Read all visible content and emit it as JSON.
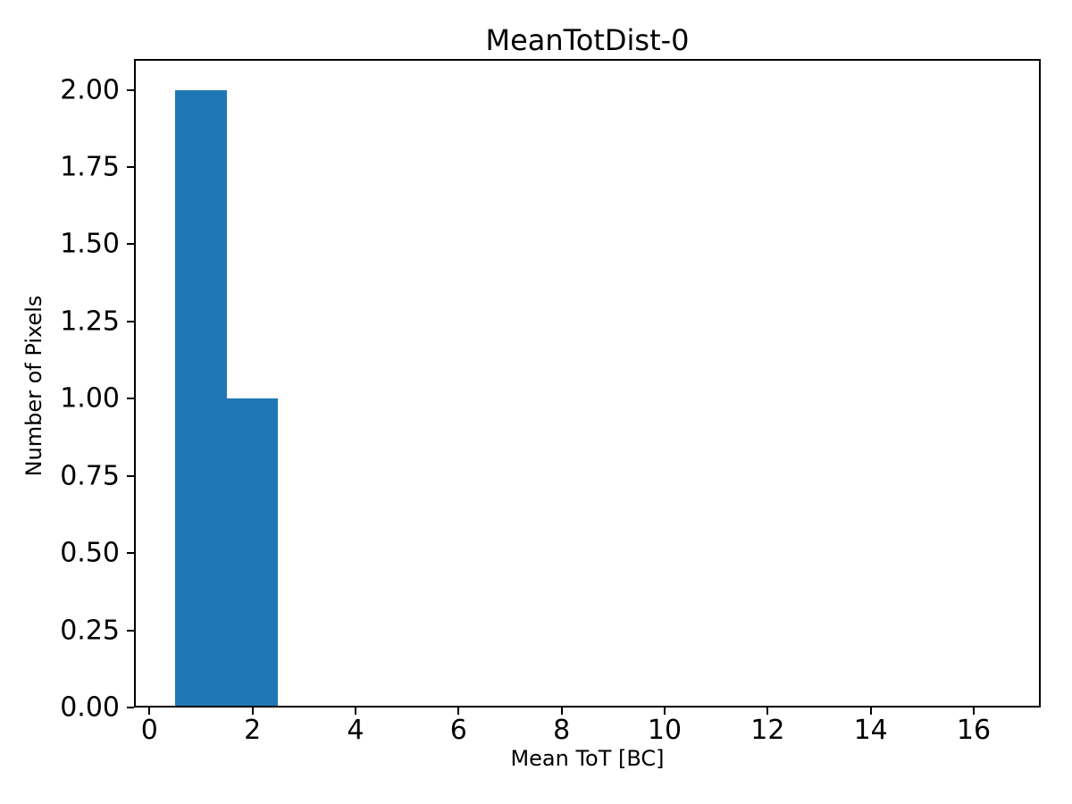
{
  "chart_data": {
    "type": "bar",
    "subtype": "histogram",
    "title": "MeanTotDist-0",
    "xlabel": "Mean ToT [BC]",
    "ylabel": "Number of Pixels",
    "bin_edges": [
      0.5,
      1.5,
      2.5
    ],
    "counts": [
      2,
      1
    ],
    "xlim": [
      -0.3,
      17.3
    ],
    "ylim": [
      0,
      2.1
    ],
    "xticks": [
      0,
      2,
      4,
      6,
      8,
      10,
      12,
      14,
      16
    ],
    "xtick_labels": [
      "0",
      "2",
      "4",
      "6",
      "8",
      "10",
      "12",
      "14",
      "16"
    ],
    "yticks": [
      0,
      0.25,
      0.5,
      0.75,
      1.0,
      1.25,
      1.5,
      1.75,
      2.0
    ],
    "ytick_labels": [
      "0.00",
      "0.25",
      "0.50",
      "0.75",
      "1.00",
      "1.25",
      "1.50",
      "1.75",
      "2.00"
    ],
    "bar_color": "#1f77b4",
    "axis_color": "#000000",
    "background_color": "#ffffff",
    "grid": false,
    "legend": null
  }
}
